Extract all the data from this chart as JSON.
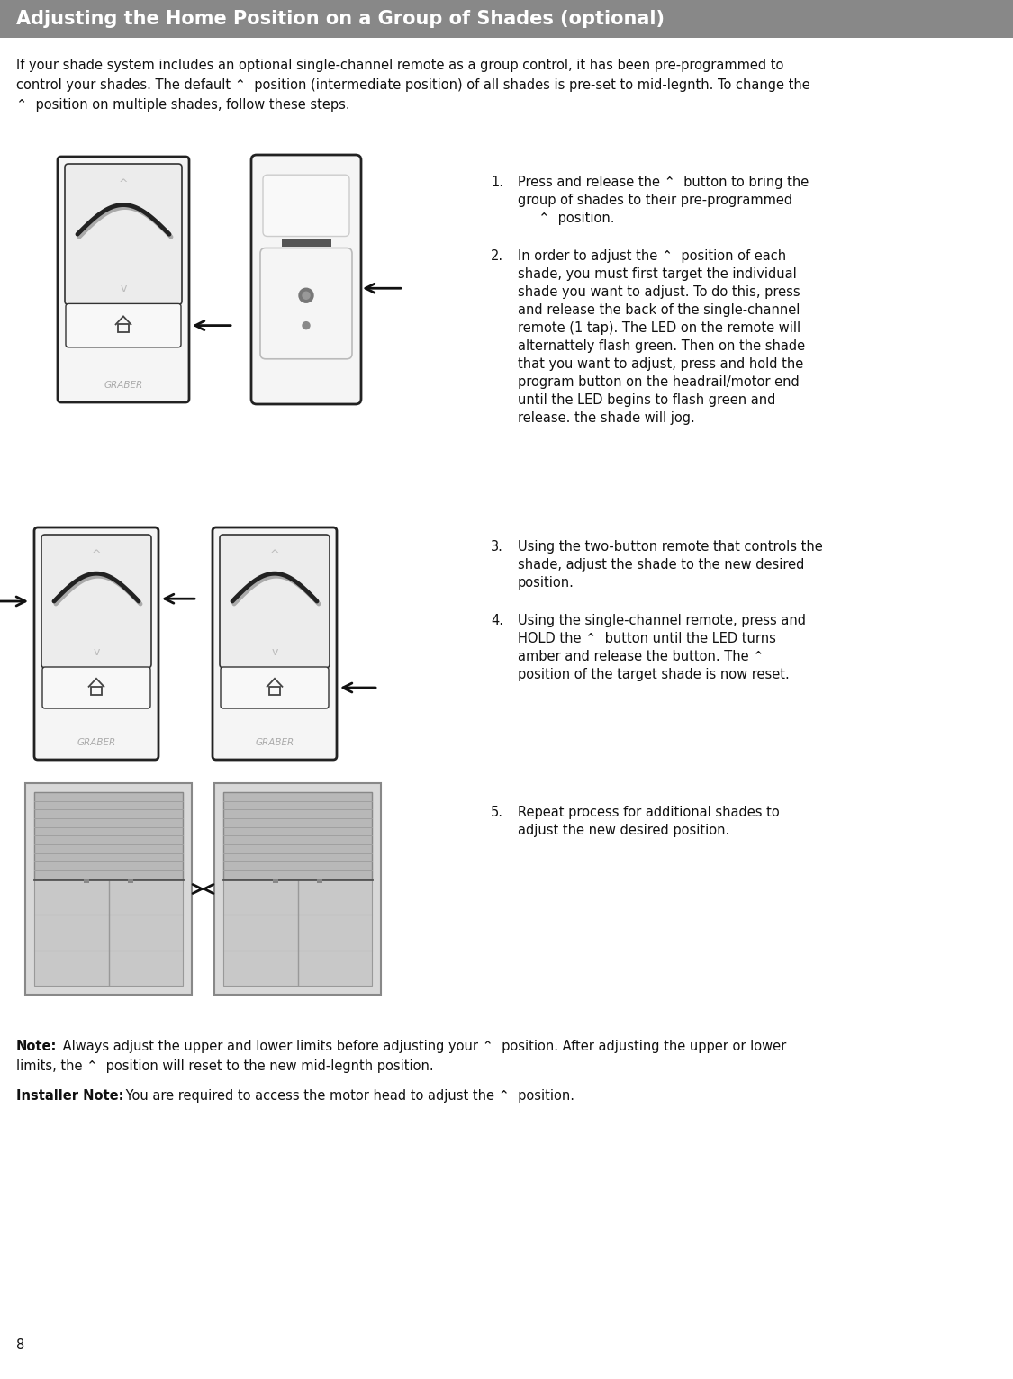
{
  "title": "Adjusting the Home Position on a Group of Shades (optional)",
  "title_bg": "#888888",
  "title_fg": "#ffffff",
  "page_bg": "#ffffff",
  "page_number": "8",
  "intro_line1": "If your shade system includes an optional single-channel remote as a group control, it has been pre-programmed to",
  "intro_line2": "control your shades. The default ⌃  position (intermediate position) of all shades is pre-set to mid-legnth. To change the",
  "intro_line3": "⌃  position on multiple shades, follow these steps.",
  "step1_lines": [
    "Press and release the ⌃  button to bring the",
    "group of shades to their pre-programmed",
    "     ⌃  position."
  ],
  "step2_lines": [
    "In order to adjust the ⌃  position of each",
    "shade, you must first target the individual",
    "shade you want to adjust. To do this, press",
    "and release the back of the single-channel",
    "remote (1 tap). The LED on the remote will",
    "alternattely flash green. Then on the shade",
    "that you want to adjust, press and hold the",
    "program button on the headrail/motor end",
    "until the LED begins to flash green and",
    "release. the shade will jog."
  ],
  "step3_lines": [
    "Using the two-button remote that controls the",
    "shade, adjust the shade to the new desired",
    "position."
  ],
  "step4_lines": [
    "Using the single-channel remote, press and",
    "HOLD the ⌃  button until the LED turns",
    "amber and release the button. The ⌃",
    "position of the target shade is now reset."
  ],
  "step5_lines": [
    "Repeat process for additional shades to",
    "adjust the new desired position."
  ],
  "note_bold": "Note:",
  "note_rest1": " Always adjust the upper and lower limits before adjusting your ⌃  position. After adjusting the upper or lower",
  "note_rest2": "limits, the ⌃  position will reset to the new mid-legnth position.",
  "installer_bold": "Installer Note:",
  "installer_rest": " You are required to access the motor head to adjust the ⌃  position."
}
